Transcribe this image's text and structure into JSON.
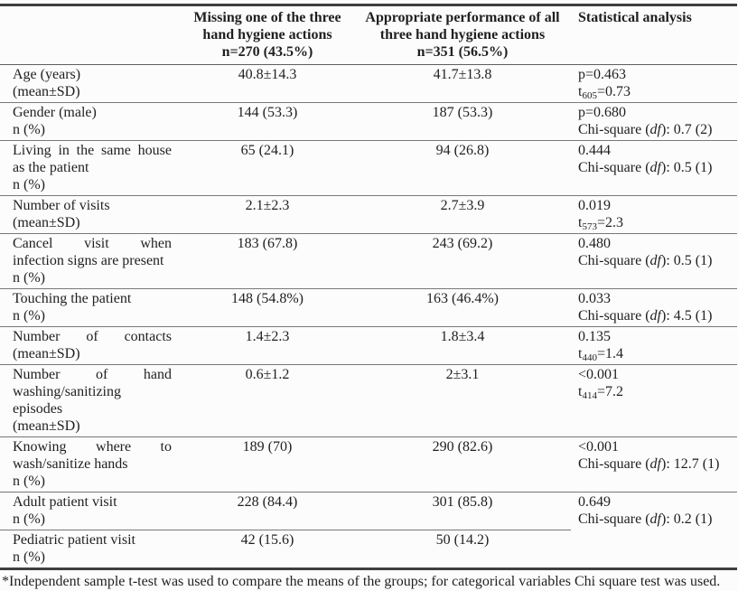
{
  "table": {
    "header": {
      "group1_lines": [
        "Missing one of the three",
        "hand hygiene actions",
        "n=270 (43.5%)"
      ],
      "group2_lines": [
        "Appropriate performance of all",
        "three hand hygiene actions",
        "n=351 (56.5%)"
      ],
      "stat_label": "Statistical analysis"
    },
    "rows": [
      {
        "label_lines": [
          "Age (years)",
          "(mean±SD)"
        ],
        "group1": "40.8±14.3",
        "group2": "41.7±13.8",
        "stat1": "p=0.463",
        "stat2_pre": "t",
        "stat2_sub": "605",
        "stat2_post": "=0.73"
      },
      {
        "label_lines": [
          "Gender (male)",
          "n (%)"
        ],
        "group1": "144 (53.3)",
        "group2": "187 (53.3)",
        "stat1": "p=0.680",
        "stat2_pre": "Chi-square (",
        "stat2_it": "df",
        "stat2_post": "): 0.7 (2)"
      },
      {
        "label_lines": [
          "Living in the same house",
          "as the patient",
          "n (%)"
        ],
        "group1": "65 (24.1)",
        "group2": "94 (26.8)",
        "stat1": "0.444",
        "stat2_pre": "Chi-square (",
        "stat2_it": "df",
        "stat2_post": "): 0.5 (1)"
      },
      {
        "label_lines": [
          "Number of visits",
          "(mean±SD)"
        ],
        "group1": "2.1±2.3",
        "group2": "2.7±3.9",
        "stat1": "0.019",
        "stat2_pre": "t",
        "stat2_sub": "573",
        "stat2_post": "=2.3"
      },
      {
        "label_lines": [
          "Cancel visit when",
          "infection signs are present",
          "n (%)"
        ],
        "group1": "183 (67.8)",
        "group2": "243 (69.2)",
        "stat1": "0.480",
        "stat2_pre": "Chi-square (",
        "stat2_it": "df",
        "stat2_post": "): 0.5 (1)"
      },
      {
        "label_lines": [
          "Touching the patient",
          "n (%)"
        ],
        "group1": "148 (54.8%)",
        "group2": "163 (46.4%)",
        "stat1": "0.033",
        "stat2_pre": "Chi-square (",
        "stat2_it": "df",
        "stat2_post": "): 4.5 (1)"
      },
      {
        "label_lines": [
          "Number of contacts",
          "(mean±SD)"
        ],
        "group1": "1.4±2.3",
        "group2": "1.8±3.4",
        "stat1": "0.135",
        "stat2_pre": "t",
        "stat2_sub": "440",
        "stat2_post": "=1.4"
      },
      {
        "label_lines": [
          "Number of hand",
          "washing/sanitizing",
          "episodes",
          "(mean±SD)"
        ],
        "group1": "0.6±1.2",
        "group2": "2±3.1",
        "stat1": "<0.001",
        "stat2_pre": "t",
        "stat2_sub": "414",
        "stat2_post": "=7.2"
      },
      {
        "label_lines": [
          "Knowing where to",
          "wash/sanitize hands",
          "n (%)"
        ],
        "group1": "189 (70)",
        "group2": "290 (82.6)",
        "stat1": "<0.001",
        "stat2_pre": "Chi-square (",
        "stat2_it": "df",
        "stat2_post": "): 12.7 (1)"
      },
      {
        "label_lines": [
          "Adult patient visit",
          "n (%)"
        ],
        "group1": "228 (84.4)",
        "group2": "301 (85.8)",
        "stat1": "0.649",
        "stat2_pre": "Chi-square (",
        "stat2_it": "df",
        "stat2_post": "): 0.2 (1)"
      },
      {
        "label_lines": [
          "Pediatric patient visit",
          "n (%)"
        ],
        "group1": "42 (15.6)",
        "group2": "50 (14.2)"
      }
    ],
    "footnote": "*Independent sample t-test was used to compare the means of the groups; for categorical variables Chi square test was used."
  }
}
